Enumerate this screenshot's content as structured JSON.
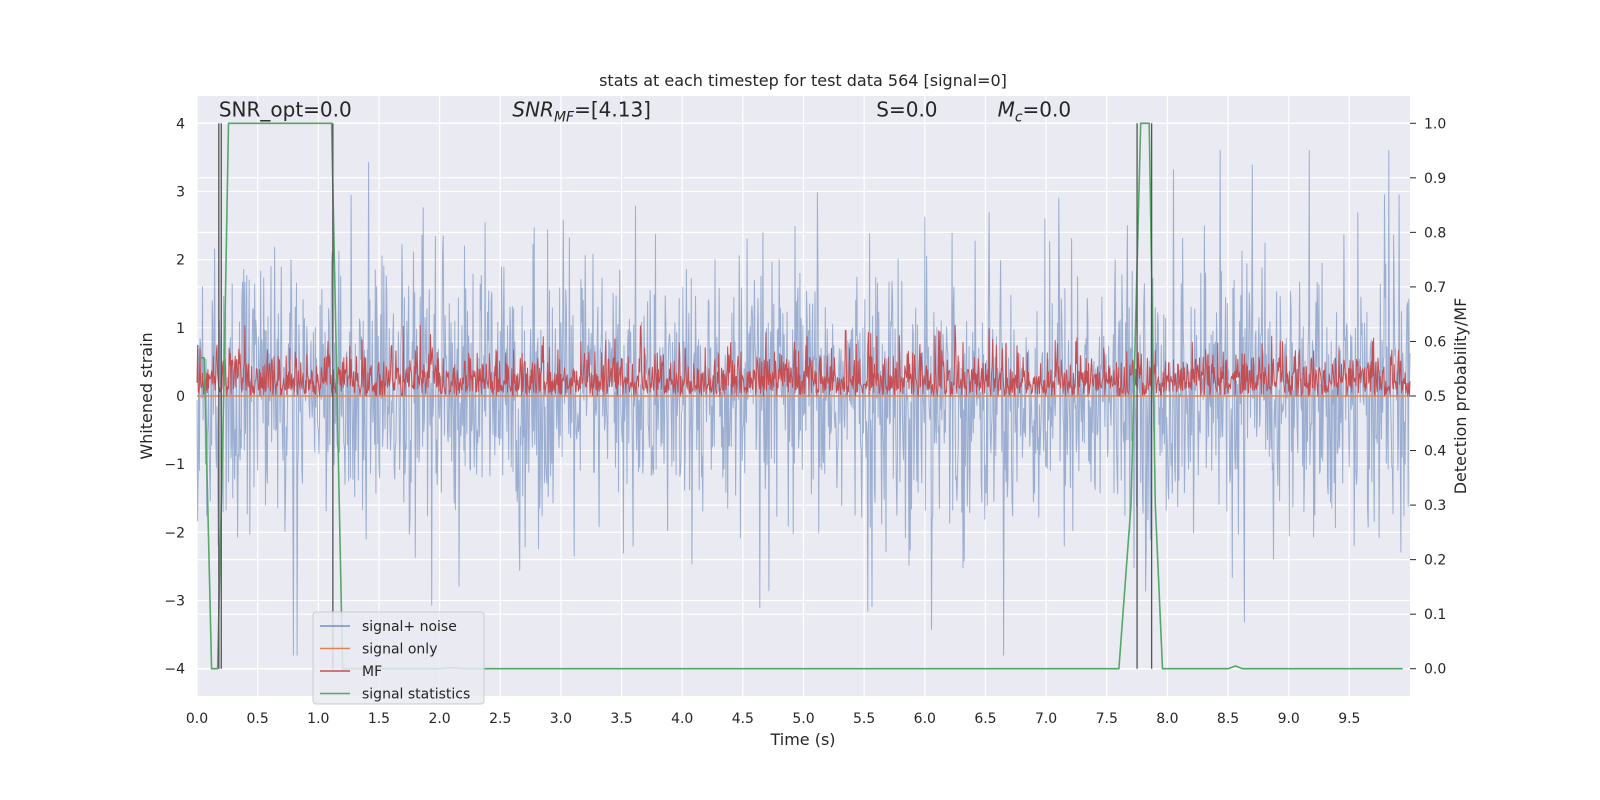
{
  "chart_data": {
    "type": "line",
    "title": "stats at each timestep for test data 564 [signal=0]",
    "xlabel": "Time (s)",
    "ylabel_left": "Whitened strain",
    "ylabel_right": "Detection probability/MF",
    "xlim": [
      0.0,
      10.0
    ],
    "ylim_left": [
      -4.4,
      4.4
    ],
    "ylim_right": [
      -0.05,
      1.05
    ],
    "xticks": [
      0.0,
      0.5,
      1.0,
      1.5,
      2.0,
      2.5,
      3.0,
      3.5,
      4.0,
      4.5,
      5.0,
      5.5,
      6.0,
      6.5,
      7.0,
      7.5,
      8.0,
      8.5,
      9.0,
      9.5
    ],
    "xtick_labels": [
      "0.0",
      "0.5",
      "1.0",
      "1.5",
      "2.0",
      "2.5",
      "3.0",
      "3.5",
      "4.0",
      "4.5",
      "5.0",
      "5.5",
      "6.0",
      "6.5",
      "7.0",
      "7.5",
      "8.0",
      "8.5",
      "9.0",
      "9.5"
    ],
    "yticks_left": [
      -4,
      -3,
      -2,
      -1,
      0,
      1,
      2,
      3,
      4
    ],
    "ytick_labels_left": [
      "−4",
      "−3",
      "−2",
      "−1",
      "0",
      "1",
      "2",
      "3",
      "4"
    ],
    "yticks_right": [
      0.0,
      0.1,
      0.2,
      0.3,
      0.4,
      0.5,
      0.6,
      0.7,
      0.8,
      0.9,
      1.0
    ],
    "ytick_labels_right": [
      "0.0",
      "0.1",
      "0.2",
      "0.3",
      "0.4",
      "0.5",
      "0.6",
      "0.7",
      "0.8",
      "0.9",
      "1.0"
    ],
    "grid": true,
    "legend_position": "lower-left",
    "annotations": [
      {
        "id": "snr-opt",
        "text": "SNR_opt=0.0",
        "x": 0.18,
        "y": 4.1
      },
      {
        "id": "snr-mf",
        "text": "SNR_MF=[4.13]",
        "x": 2.6,
        "y": 4.1
      },
      {
        "id": "s",
        "text": "S=0.0",
        "x": 5.6,
        "y": 4.1
      },
      {
        "id": "mc",
        "text": "M_c=0.0",
        "x": 6.6,
        "y": 4.1
      }
    ],
    "series": [
      {
        "name": "signal+ noise",
        "axis": "left",
        "color": "#4c72b0",
        "opacity": 0.5,
        "kind": "noise",
        "sample_rate": 200,
        "amplitude_std": 1.0,
        "peak_range": [
          -3.8,
          3.6
        ]
      },
      {
        "name": "signal only",
        "axis": "left",
        "color": "#dd8452",
        "x": [
          0.0,
          10.0
        ],
        "y": [
          0.0,
          0.0
        ]
      },
      {
        "name": "MF",
        "axis": "right",
        "color": "#c44e52",
        "kind": "noise",
        "sample_rate": 200,
        "baseline": 0.5,
        "range": [
          0.49,
          0.63
        ],
        "peak_at": 5.35,
        "peak_value": 0.62
      },
      {
        "name": "signal statistics",
        "axis": "right",
        "color": "#55a868",
        "x": [
          0.0,
          0.06,
          0.12,
          0.17,
          0.22,
          0.26,
          1.0,
          1.11,
          1.2,
          1.3,
          2.0,
          2.1,
          2.2,
          7.6,
          7.7,
          7.78,
          7.85,
          7.9,
          7.96,
          8.0,
          8.5,
          8.56,
          8.62,
          9.94
        ],
        "y": [
          0.57,
          0.57,
          0.0,
          0.0,
          0.5,
          1.0,
          1.0,
          1.0,
          0.0,
          0.0,
          0.0,
          0.002,
          0.0,
          0.0,
          0.3,
          1.0,
          1.0,
          0.3,
          0.0,
          0.0,
          0.0,
          0.005,
          0.0,
          0.0
        ]
      }
    ],
    "vertical_lines": {
      "color": "#555555",
      "x": [
        0.18,
        0.2,
        1.12,
        7.75,
        7.87
      ],
      "y_top": 4.0,
      "y_bottom": -4.0
    }
  }
}
